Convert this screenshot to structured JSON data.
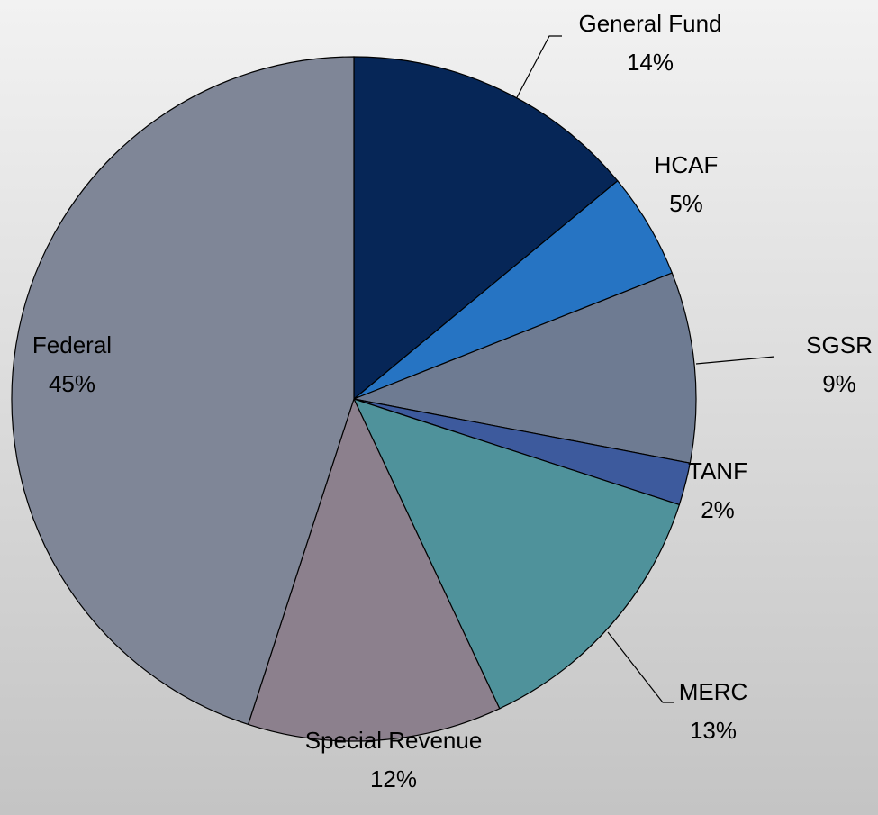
{
  "chart_data": {
    "type": "pie",
    "categories": [
      "General Fund",
      "HCAF",
      "SGSR",
      "TANF",
      "MERC",
      "Special Revenue",
      "Federal"
    ],
    "values": [
      14,
      5,
      9,
      2,
      13,
      12,
      45
    ],
    "value_labels": [
      "14%",
      "5%",
      "9%",
      "2%",
      "13%",
      "12%",
      "45%"
    ],
    "colors": [
      "#062657",
      "#2674c3",
      "#6e7b92",
      "#3d5a9d",
      "#4f929b",
      "#8c808d",
      "#7f8697"
    ]
  }
}
